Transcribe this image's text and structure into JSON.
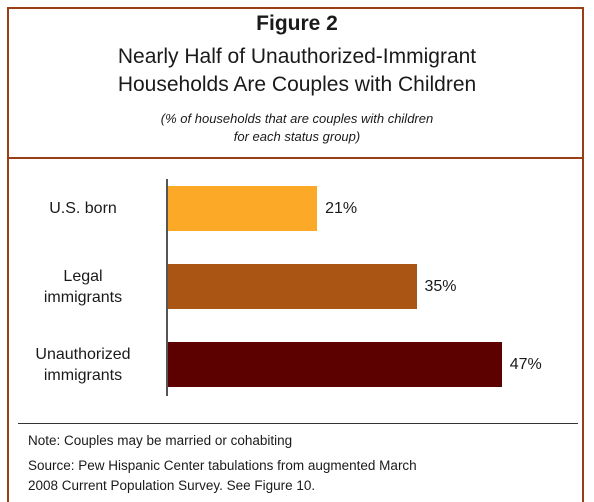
{
  "figure_label": "Figure 2",
  "title_line1": "Nearly Half of Unauthorized-Immigrant",
  "title_line2": "Households Are Couples with Children",
  "subtitle_line1": "(% of households that are couples with children",
  "subtitle_line2": "for each status group)",
  "note": "Note: Couples may be married or cohabiting",
  "source_line1": "Source:  Pew Hispanic Center tabulations from augmented March",
  "source_line2": "2008 Current Population Survey.  See Figure 10.",
  "colors": {
    "frame": "#9a3e16",
    "bar1": "#fca927",
    "bar2": "#aa5513",
    "bar3": "#5c0000"
  },
  "chart_data": {
    "type": "bar",
    "orientation": "horizontal",
    "categories": [
      [
        "U.S. born"
      ],
      [
        "Legal",
        "immigrants"
      ],
      [
        "Unauthorized",
        "immigrants"
      ]
    ],
    "values": [
      21,
      35,
      47
    ],
    "value_labels": [
      "21%",
      "35%",
      "47%"
    ],
    "xlim": [
      0,
      50
    ],
    "grid": false,
    "legend": "none"
  }
}
